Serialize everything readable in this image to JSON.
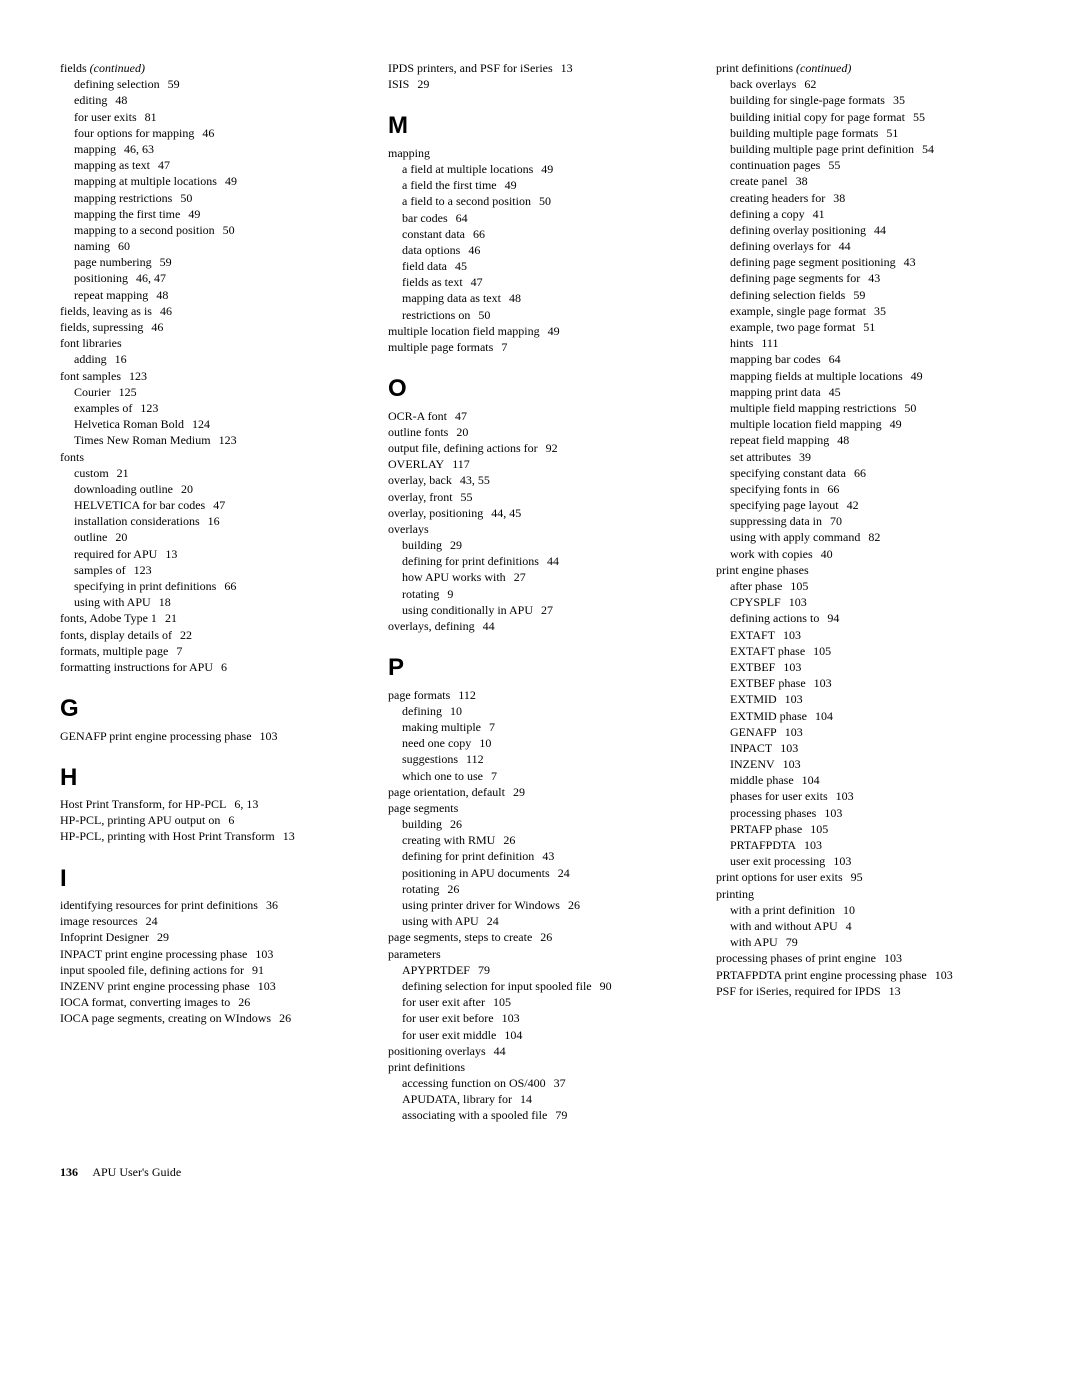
{
  "footer": {
    "page": "136",
    "title": "APU User's Guide"
  },
  "col1": [
    {
      "lvl": 0,
      "text": "fields",
      "suffix_italic": " (continued)"
    },
    {
      "lvl": 1,
      "text": "defining selection",
      "ref": "59"
    },
    {
      "lvl": 1,
      "text": "editing",
      "ref": "48"
    },
    {
      "lvl": 1,
      "text": "for user exits",
      "ref": "81"
    },
    {
      "lvl": 1,
      "text": "four options for mapping",
      "ref": "46"
    },
    {
      "lvl": 1,
      "text": "mapping",
      "ref": "46, 63"
    },
    {
      "lvl": 1,
      "text": "mapping as text",
      "ref": "47"
    },
    {
      "lvl": 1,
      "text": "mapping at multiple locations",
      "ref": "49"
    },
    {
      "lvl": 1,
      "text": "mapping restrictions",
      "ref": "50"
    },
    {
      "lvl": 1,
      "text": "mapping the first time",
      "ref": "49"
    },
    {
      "lvl": 1,
      "text": "mapping to a second position",
      "ref": "50"
    },
    {
      "lvl": 1,
      "text": "naming",
      "ref": "60"
    },
    {
      "lvl": 1,
      "text": "page numbering",
      "ref": "59"
    },
    {
      "lvl": 1,
      "text": "positioning",
      "ref": "46, 47"
    },
    {
      "lvl": 1,
      "text": "repeat mapping",
      "ref": "48"
    },
    {
      "lvl": 0,
      "text": "fields, leaving as is",
      "ref": "46"
    },
    {
      "lvl": 0,
      "text": "fields, supressing",
      "ref": "46"
    },
    {
      "lvl": 0,
      "text": "font libraries"
    },
    {
      "lvl": 1,
      "text": "adding",
      "ref": "16"
    },
    {
      "lvl": 0,
      "text": "font samples",
      "ref": "123"
    },
    {
      "lvl": 1,
      "text": "Courier",
      "ref": "125"
    },
    {
      "lvl": 1,
      "text": "examples of",
      "ref": "123"
    },
    {
      "lvl": 1,
      "text": "Helvetica Roman Bold",
      "ref": "124"
    },
    {
      "lvl": 1,
      "text": "Times New Roman Medium",
      "ref": "123"
    },
    {
      "lvl": 0,
      "text": "fonts"
    },
    {
      "lvl": 1,
      "text": "custom",
      "ref": "21"
    },
    {
      "lvl": 1,
      "text": "downloading outline",
      "ref": "20"
    },
    {
      "lvl": 1,
      "text": "HELVETICA for bar codes",
      "ref": "47"
    },
    {
      "lvl": 1,
      "text": "installation considerations",
      "ref": "16"
    },
    {
      "lvl": 1,
      "text": "outline",
      "ref": "20"
    },
    {
      "lvl": 1,
      "text": "required for APU",
      "ref": "13"
    },
    {
      "lvl": 1,
      "text": "samples of",
      "ref": "123"
    },
    {
      "lvl": 1,
      "text": "specifying in print definitions",
      "ref": "66"
    },
    {
      "lvl": 1,
      "text": "using with APU",
      "ref": "18"
    },
    {
      "lvl": 0,
      "text": "fonts, Adobe Type 1",
      "ref": "21"
    },
    {
      "lvl": 0,
      "text": "fonts, display details of",
      "ref": "22"
    },
    {
      "lvl": 0,
      "text": "formats, multiple page",
      "ref": "7"
    },
    {
      "lvl": 0,
      "text": "formatting instructions for APU",
      "ref": "6"
    },
    {
      "letter": "G"
    },
    {
      "lvl": 0,
      "text": "GENAFP print engine processing phase",
      "ref": "103",
      "hang": true
    },
    {
      "letter": "H"
    },
    {
      "lvl": 0,
      "text": "Host Print Transform, for HP-PCL",
      "ref": "6, 13"
    },
    {
      "lvl": 0,
      "text": "HP-PCL, printing APU output on",
      "ref": "6"
    },
    {
      "lvl": 0,
      "text": "HP-PCL, printing with Host Print Transform",
      "ref": "13",
      "hang": true
    },
    {
      "letter": "I"
    },
    {
      "lvl": 0,
      "text": "identifying resources for print definitions",
      "ref": "36",
      "hang": true
    },
    {
      "lvl": 0,
      "text": "image resources",
      "ref": "24"
    },
    {
      "lvl": 0,
      "text": "Infoprint Designer",
      "ref": "29"
    },
    {
      "lvl": 0,
      "text": "INPACT print engine processing phase",
      "ref": "103",
      "hang": true
    },
    {
      "lvl": 0,
      "text": "input spooled file, defining actions for",
      "ref": "91",
      "hang": true
    },
    {
      "lvl": 0,
      "text": "INZENV print engine processing phase",
      "ref": "103",
      "hang": true
    },
    {
      "lvl": 0,
      "text": "IOCA format, converting images to",
      "ref": "26"
    },
    {
      "lvl": 0,
      "text": "IOCA page segments, creating on WIndows",
      "ref": "26",
      "hang": true
    }
  ],
  "col2": [
    {
      "lvl": 0,
      "text": "IPDS printers, and PSF for iSeries",
      "ref": "13"
    },
    {
      "lvl": 0,
      "text": "ISIS",
      "ref": "29"
    },
    {
      "letter": "M"
    },
    {
      "lvl": 0,
      "text": "mapping"
    },
    {
      "lvl": 1,
      "text": "a field at multiple locations",
      "ref": "49"
    },
    {
      "lvl": 1,
      "text": "a field the first time",
      "ref": "49"
    },
    {
      "lvl": 1,
      "text": "a field to a second position",
      "ref": "50"
    },
    {
      "lvl": 1,
      "text": "bar codes",
      "ref": "64"
    },
    {
      "lvl": 1,
      "text": "constant data",
      "ref": "66"
    },
    {
      "lvl": 1,
      "text": "data options",
      "ref": "46"
    },
    {
      "lvl": 1,
      "text": "field data",
      "ref": "45"
    },
    {
      "lvl": 1,
      "text": "fields as text",
      "ref": "47"
    },
    {
      "lvl": 1,
      "text": "mapping data as text",
      "ref": "48"
    },
    {
      "lvl": 1,
      "text": "restrictions on",
      "ref": "50"
    },
    {
      "lvl": 0,
      "text": "multiple location field mapping",
      "ref": "49"
    },
    {
      "lvl": 0,
      "text": "multiple page formats",
      "ref": "7"
    },
    {
      "letter": "O"
    },
    {
      "lvl": 0,
      "text": "OCR-A font",
      "ref": "47"
    },
    {
      "lvl": 0,
      "text": "outline fonts",
      "ref": "20"
    },
    {
      "lvl": 0,
      "text": "output file, defining actions for",
      "ref": "92"
    },
    {
      "lvl": 0,
      "text": "OVERLAY",
      "ref": "117"
    },
    {
      "lvl": 0,
      "text": "overlay, back",
      "ref": "43, 55"
    },
    {
      "lvl": 0,
      "text": "overlay, front",
      "ref": "55"
    },
    {
      "lvl": 0,
      "text": "overlay, positioning",
      "ref": "44, 45"
    },
    {
      "lvl": 0,
      "text": "overlays"
    },
    {
      "lvl": 1,
      "text": "building",
      "ref": "29"
    },
    {
      "lvl": 1,
      "text": "defining for print definitions",
      "ref": "44"
    },
    {
      "lvl": 1,
      "text": "how APU works with",
      "ref": "27"
    },
    {
      "lvl": 1,
      "text": "rotating",
      "ref": "9"
    },
    {
      "lvl": 1,
      "text": "using conditionally in APU",
      "ref": "27"
    },
    {
      "lvl": 0,
      "text": "overlays, defining",
      "ref": "44"
    },
    {
      "letter": "P"
    },
    {
      "lvl": 0,
      "text": "page formats",
      "ref": "112"
    },
    {
      "lvl": 1,
      "text": "defining",
      "ref": "10"
    },
    {
      "lvl": 1,
      "text": "making multiple",
      "ref": "7"
    },
    {
      "lvl": 1,
      "text": "need one copy",
      "ref": "10"
    },
    {
      "lvl": 1,
      "text": "suggestions",
      "ref": "112"
    },
    {
      "lvl": 1,
      "text": "which one to use",
      "ref": "7"
    },
    {
      "lvl": 0,
      "text": "page orientation, default",
      "ref": "29"
    },
    {
      "lvl": 0,
      "text": "page segments"
    },
    {
      "lvl": 1,
      "text": "building",
      "ref": "26"
    },
    {
      "lvl": 1,
      "text": "creating with RMU",
      "ref": "26"
    },
    {
      "lvl": 1,
      "text": "defining for print definition",
      "ref": "43"
    },
    {
      "lvl": 1,
      "text": "positioning in APU documents",
      "ref": "24"
    },
    {
      "lvl": 1,
      "text": "rotating",
      "ref": "26"
    },
    {
      "lvl": 1,
      "text": "using printer driver for Windows",
      "ref": "26"
    },
    {
      "lvl": 1,
      "text": "using with APU",
      "ref": "24"
    },
    {
      "lvl": 0,
      "text": "page segments, steps to create",
      "ref": "26"
    },
    {
      "lvl": 0,
      "text": "parameters"
    },
    {
      "lvl": 1,
      "text": "APYPRTDEF",
      "ref": "79"
    },
    {
      "lvl": 1,
      "text": "defining selection for input spooled file",
      "ref": "90",
      "hang": true
    },
    {
      "lvl": 1,
      "text": "for user exit after",
      "ref": "105"
    },
    {
      "lvl": 1,
      "text": "for user exit before",
      "ref": "103"
    },
    {
      "lvl": 1,
      "text": "for user exit middle",
      "ref": "104"
    },
    {
      "lvl": 0,
      "text": "positioning overlays",
      "ref": "44"
    },
    {
      "lvl": 0,
      "text": "print definitions"
    },
    {
      "lvl": 1,
      "text": "accessing function on OS/400",
      "ref": "37"
    },
    {
      "lvl": 1,
      "text": "APUDATA, library for",
      "ref": "14"
    },
    {
      "lvl": 1,
      "text": "associating with a spooled file",
      "ref": "79"
    }
  ],
  "col3": [
    {
      "lvl": 0,
      "text": "print definitions",
      "suffix_italic": " (continued)"
    },
    {
      "lvl": 1,
      "text": "back overlays",
      "ref": "62"
    },
    {
      "lvl": 1,
      "text": "building for single-page formats",
      "ref": "35"
    },
    {
      "lvl": 1,
      "text": "building initial copy for page format",
      "ref": "55",
      "hang": true
    },
    {
      "lvl": 1,
      "text": "building multiple page formats",
      "ref": "51"
    },
    {
      "lvl": 1,
      "text": "building multiple page print definition",
      "ref": "54",
      "hang": true
    },
    {
      "lvl": 1,
      "text": "continuation pages",
      "ref": "55"
    },
    {
      "lvl": 1,
      "text": "create panel",
      "ref": "38"
    },
    {
      "lvl": 1,
      "text": "creating headers for",
      "ref": "38"
    },
    {
      "lvl": 1,
      "text": "defining a copy",
      "ref": "41"
    },
    {
      "lvl": 1,
      "text": "defining overlay positioning",
      "ref": "44"
    },
    {
      "lvl": 1,
      "text": "defining overlays for",
      "ref": "44"
    },
    {
      "lvl": 1,
      "text": "defining page segment positioning",
      "ref": "43",
      "hang": true
    },
    {
      "lvl": 1,
      "text": "defining page segments for",
      "ref": "43"
    },
    {
      "lvl": 1,
      "text": "defining selection fields",
      "ref": "59"
    },
    {
      "lvl": 1,
      "text": "example, single page format",
      "ref": "35"
    },
    {
      "lvl": 1,
      "text": "example, two page format",
      "ref": "51"
    },
    {
      "lvl": 1,
      "text": "hints",
      "ref": "111"
    },
    {
      "lvl": 1,
      "text": "mapping bar codes",
      "ref": "64"
    },
    {
      "lvl": 1,
      "text": "mapping fields at multiple locations",
      "ref": "49",
      "hang": true
    },
    {
      "lvl": 1,
      "text": "mapping print data",
      "ref": "45"
    },
    {
      "lvl": 1,
      "text": "multiple field mapping restrictions",
      "ref": "50",
      "hang": true
    },
    {
      "lvl": 1,
      "text": "multiple location field mapping",
      "ref": "49"
    },
    {
      "lvl": 1,
      "text": "repeat field mapping",
      "ref": "48"
    },
    {
      "lvl": 1,
      "text": "set attributes",
      "ref": "39"
    },
    {
      "lvl": 1,
      "text": "specifying constant data",
      "ref": "66"
    },
    {
      "lvl": 1,
      "text": "specifying fonts in",
      "ref": "66"
    },
    {
      "lvl": 1,
      "text": "specifying page layout",
      "ref": "42"
    },
    {
      "lvl": 1,
      "text": "suppressing data in",
      "ref": "70"
    },
    {
      "lvl": 1,
      "text": "using with apply command",
      "ref": "82"
    },
    {
      "lvl": 1,
      "text": "work with copies",
      "ref": "40"
    },
    {
      "lvl": 0,
      "text": "print engine phases"
    },
    {
      "lvl": 1,
      "text": "after phase",
      "ref": "105"
    },
    {
      "lvl": 1,
      "text": "CPYSPLF",
      "ref": "103"
    },
    {
      "lvl": 1,
      "text": "defining actions to",
      "ref": "94"
    },
    {
      "lvl": 1,
      "text": "EXTAFT",
      "ref": "103"
    },
    {
      "lvl": 1,
      "text": "EXTAFT phase",
      "ref": "105"
    },
    {
      "lvl": 1,
      "text": "EXTBEF",
      "ref": "103"
    },
    {
      "lvl": 1,
      "text": "EXTBEF phase",
      "ref": "103"
    },
    {
      "lvl": 1,
      "text": "EXTMID",
      "ref": "103"
    },
    {
      "lvl": 1,
      "text": "EXTMID phase",
      "ref": "104"
    },
    {
      "lvl": 1,
      "text": "GENAFP",
      "ref": "103"
    },
    {
      "lvl": 1,
      "text": "INPACT",
      "ref": "103"
    },
    {
      "lvl": 1,
      "text": "INZENV",
      "ref": "103"
    },
    {
      "lvl": 1,
      "text": "middle phase",
      "ref": "104"
    },
    {
      "lvl": 1,
      "text": "phases for user exits",
      "ref": "103"
    },
    {
      "lvl": 1,
      "text": "processing phases",
      "ref": "103"
    },
    {
      "lvl": 1,
      "text": "PRTAFP phase",
      "ref": "105"
    },
    {
      "lvl": 1,
      "text": "PRTAFPDTA",
      "ref": "103"
    },
    {
      "lvl": 1,
      "text": "user exit processing",
      "ref": "103"
    },
    {
      "lvl": 0,
      "text": "print options for user exits",
      "ref": "95"
    },
    {
      "lvl": 0,
      "text": "printing"
    },
    {
      "lvl": 1,
      "text": "with a print definition",
      "ref": "10"
    },
    {
      "lvl": 1,
      "text": "with and without APU",
      "ref": "4"
    },
    {
      "lvl": 1,
      "text": "with APU",
      "ref": "79"
    },
    {
      "lvl": 0,
      "text": "processing phases of print engine",
      "ref": "103"
    },
    {
      "lvl": 0,
      "text": "PRTAFPDTA print engine processing phase",
      "ref": "103",
      "hang": true
    },
    {
      "lvl": 0,
      "text": "PSF for iSeries, required for IPDS",
      "ref": "13"
    }
  ]
}
